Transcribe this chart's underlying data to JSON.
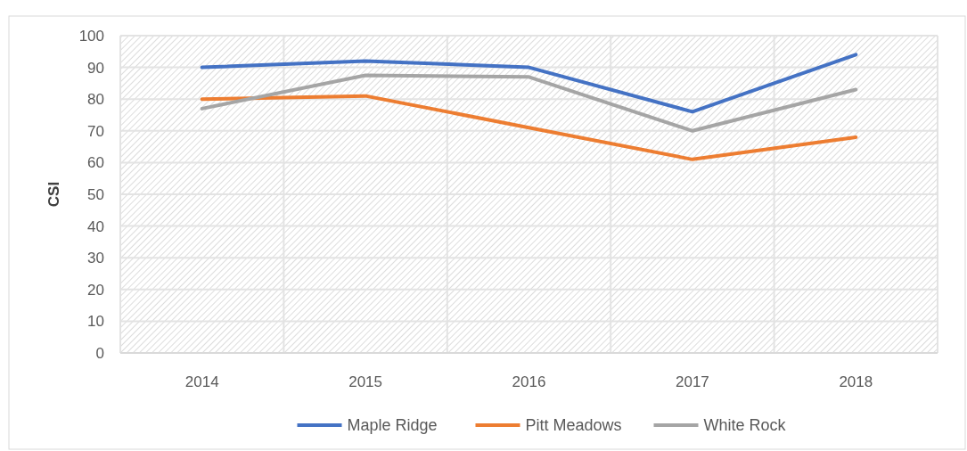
{
  "chart_data": {
    "type": "line",
    "ylabel": "CSI",
    "categories": [
      "2014",
      "2015",
      "2016",
      "2017",
      "2018"
    ],
    "series": [
      {
        "name": "Maple Ridge",
        "color": "#4472c4",
        "values": [
          90,
          92,
          90,
          76,
          94
        ]
      },
      {
        "name": "Pitt Meadows",
        "color": "#ed7d31",
        "values": [
          80,
          81,
          71,
          61,
          68
        ]
      },
      {
        "name": "White Rock",
        "color": "#a5a5a5",
        "values": [
          77,
          87.5,
          87,
          70,
          83
        ]
      }
    ],
    "ylim": [
      0,
      100
    ],
    "yticks": [
      0,
      10,
      20,
      30,
      40,
      50,
      60,
      70,
      80,
      90,
      100
    ],
    "grid": true,
    "legend": "bottom",
    "marker": "none",
    "line_style": "solid"
  }
}
